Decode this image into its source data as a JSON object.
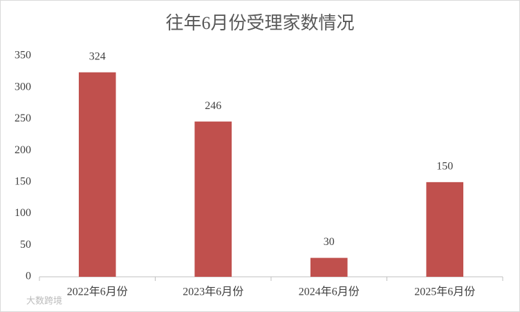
{
  "chart_data": {
    "type": "bar",
    "title": "往年6月份受理家数情况",
    "categories": [
      "2022年6月份",
      "2023年6月份",
      "2024年6月份",
      "2025年6月份"
    ],
    "values": [
      324,
      246,
      30,
      150
    ],
    "color": "#c0504d",
    "ylim": [
      0,
      350
    ],
    "yticks": [
      0,
      50,
      100,
      150,
      200,
      250,
      300,
      350
    ],
    "grid": false,
    "data_labels": true
  },
  "watermark": "大数跨境"
}
